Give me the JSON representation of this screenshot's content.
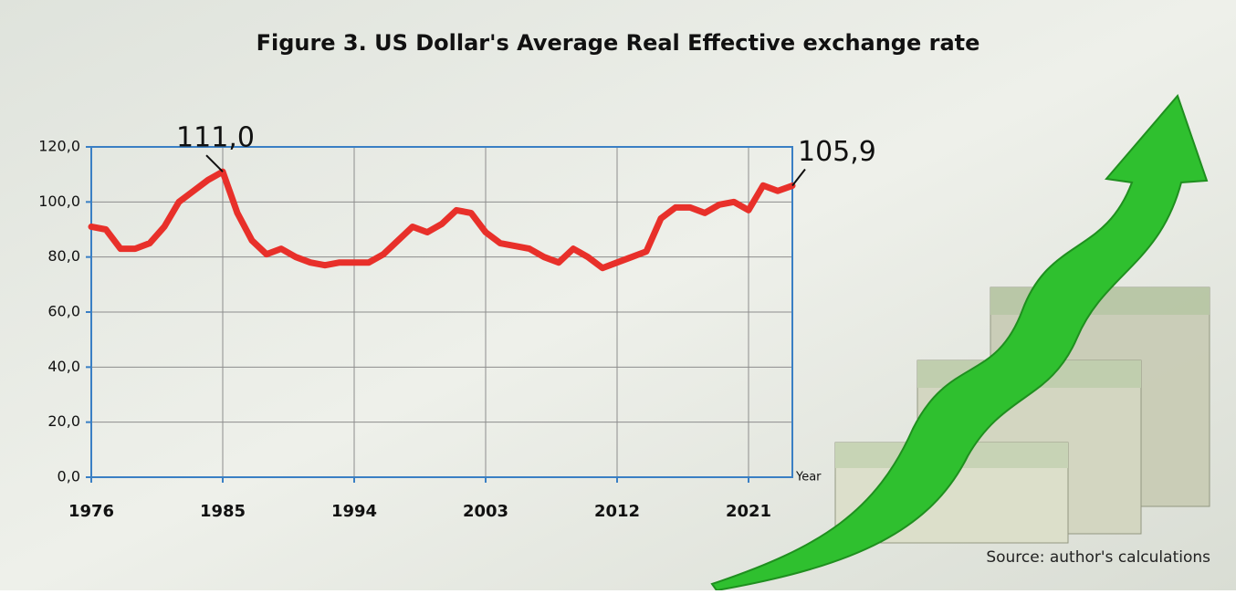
{
  "chart_data": {
    "type": "line",
    "title": "Figure 3. US Dollar's Average Real Effective exchange rate",
    "x_label": "Year",
    "source": "Source: author's calculations",
    "x": [
      1976,
      1977,
      1978,
      1979,
      1980,
      1981,
      1982,
      1983,
      1984,
      1985,
      1986,
      1987,
      1988,
      1989,
      1990,
      1991,
      1992,
      1993,
      1994,
      1995,
      1996,
      1997,
      1998,
      1999,
      2000,
      2001,
      2002,
      2003,
      2004,
      2005,
      2006,
      2007,
      2008,
      2009,
      2010,
      2011,
      2012,
      2013,
      2014,
      2015,
      2016,
      2017,
      2018,
      2019,
      2020,
      2021,
      2022,
      2023,
      2024
    ],
    "values": [
      91,
      90,
      83,
      83,
      85,
      91,
      100,
      104,
      108,
      111.0,
      96,
      86,
      81,
      83,
      80,
      78,
      77,
      78,
      78,
      78,
      81,
      86,
      91,
      89,
      92,
      97,
      96,
      89,
      85,
      84,
      83,
      80,
      78,
      83,
      80,
      76,
      78,
      80,
      82,
      94,
      98,
      98,
      96,
      99,
      100,
      97,
      106,
      104,
      105.9
    ],
    "value_labels": [
      null,
      null,
      null,
      null,
      null,
      null,
      null,
      null,
      null,
      "111,0",
      null,
      null,
      null,
      null,
      null,
      null,
      null,
      null,
      null,
      null,
      null,
      null,
      null,
      null,
      null,
      null,
      null,
      null,
      null,
      null,
      null,
      null,
      null,
      null,
      null,
      null,
      null,
      null,
      null,
      null,
      null,
      null,
      null,
      null,
      null,
      null,
      null,
      null,
      "105,9"
    ],
    "color": "#e8302a",
    "xlim": [
      1976,
      2024
    ],
    "xticks": [
      1976,
      1985,
      1994,
      2003,
      2012,
      2021
    ],
    "ylim": [
      0,
      120
    ],
    "yticks": [
      {
        "value": 0,
        "label": "0,0"
      },
      {
        "value": 20,
        "label": "20,0"
      },
      {
        "value": 40,
        "label": "40,0"
      },
      {
        "value": 60,
        "label": "60,0"
      },
      {
        "value": 80,
        "label": "80,0"
      },
      {
        "value": 100,
        "label": "100,0"
      },
      {
        "value": 120,
        "label": "120,0"
      }
    ],
    "grid": true
  }
}
